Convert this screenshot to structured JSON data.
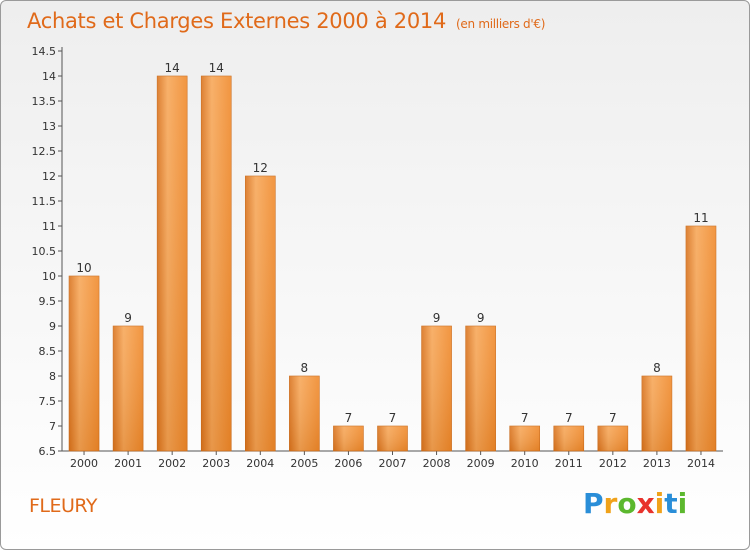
{
  "chart_data": {
    "type": "bar",
    "title": "Achats et Charges Externes 2000 à 2014",
    "unit_note": "(en milliers d'€)",
    "categories": [
      "2000",
      "2001",
      "2002",
      "2003",
      "2004",
      "2005",
      "2006",
      "2007",
      "2008",
      "2009",
      "2010",
      "2011",
      "2012",
      "2013",
      "2014"
    ],
    "values": [
      10,
      9,
      14,
      14,
      12,
      8,
      7,
      7,
      9,
      9,
      7,
      7,
      7,
      8,
      11
    ],
    "value_labels": [
      "10",
      "9",
      "14",
      "14",
      "12",
      "8",
      "7",
      "7",
      "9",
      "9",
      "7",
      "7",
      "7",
      "8",
      "11"
    ],
    "ylim": [
      6.5,
      14.5
    ],
    "yticks": [
      6.5,
      7,
      7.5,
      8,
      8.5,
      9,
      9.5,
      10,
      10.5,
      11,
      11.5,
      12,
      12.5,
      13,
      13.5,
      14,
      14.5
    ],
    "ytick_labels": [
      "6.5",
      "7",
      "7.5",
      "8",
      "8.5",
      "9",
      "9.5",
      "10",
      "10.5",
      "11",
      "11.5",
      "12",
      "12.5",
      "13",
      "13.5",
      "14",
      "14.5"
    ],
    "grid": false,
    "bar_color": "#f08a2c",
    "bar_color_light": "#f7a85a",
    "bar_color_dark": "#d9731e"
  },
  "footer": {
    "place": "FLEURY",
    "logo": [
      "P",
      "r",
      "o",
      "x",
      "i",
      "t",
      "i"
    ]
  }
}
